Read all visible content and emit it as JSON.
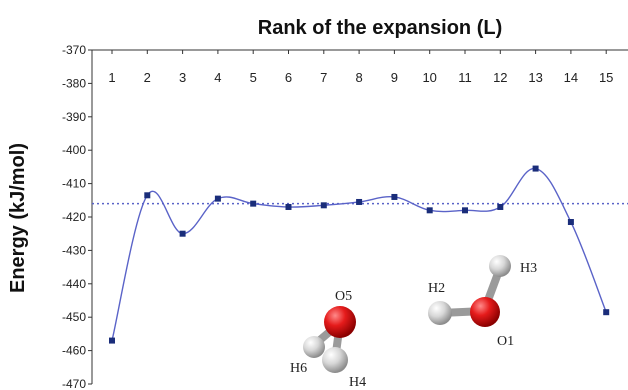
{
  "chart_data": {
    "type": "line",
    "title": "Rank of the expansion (L)",
    "xlabel": "",
    "ylabel": "Energy (kJ/mol)",
    "x": [
      1,
      2,
      3,
      4,
      5,
      6,
      7,
      8,
      9,
      10,
      11,
      12,
      13,
      14,
      15
    ],
    "series": [
      {
        "values": [
          -457,
          -413.5,
          -425,
          -414.5,
          -416,
          -417,
          -416.5,
          -415.5,
          -414,
          -418,
          -418,
          -417,
          -405.5,
          -421.5,
          -448.5
        ],
        "color": "#5a63c8",
        "marker_color": "#1a2d7a"
      }
    ],
    "reference_line": {
      "value": -416,
      "style": "dotted",
      "color": "#5a63c8"
    },
    "ylim": [
      -470,
      -370
    ],
    "yticks": [
      -370,
      -380,
      -390,
      -400,
      -410,
      -420,
      -430,
      -440,
      -450,
      -460,
      -470
    ],
    "xticks": [
      1,
      2,
      3,
      4,
      5,
      6,
      7,
      8,
      9,
      10,
      11,
      12,
      13,
      14,
      15
    ],
    "x_axis_position": "top",
    "grid": false,
    "legend": "none"
  },
  "molecules": [
    {
      "atoms": [
        {
          "label": "O5",
          "element": "O",
          "color": "#e02424"
        },
        {
          "label": "H6",
          "element": "H",
          "color": "#dcdcdc"
        },
        {
          "label": "H4",
          "element": "H",
          "color": "#dcdcdc"
        }
      ]
    },
    {
      "atoms": [
        {
          "label": "O1",
          "element": "O",
          "color": "#e02424"
        },
        {
          "label": "H2",
          "element": "H",
          "color": "#dcdcdc"
        },
        {
          "label": "H3",
          "element": "H",
          "color": "#dcdcdc"
        }
      ]
    }
  ]
}
